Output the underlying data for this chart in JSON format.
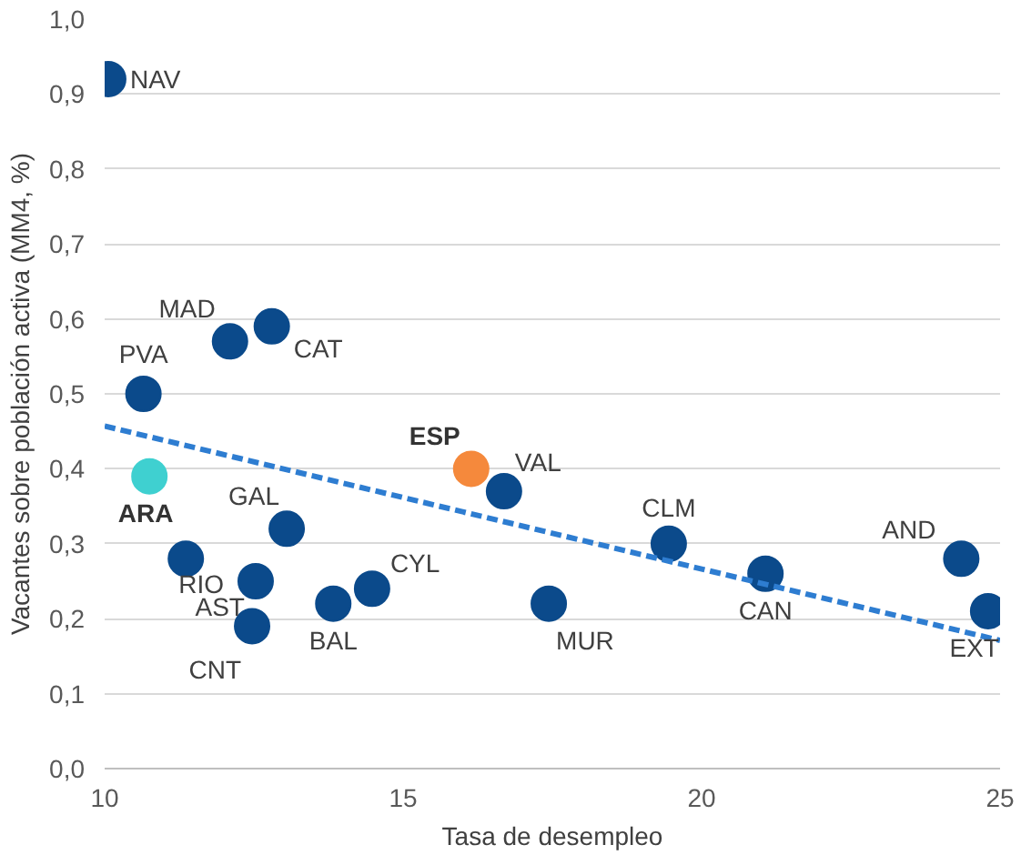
{
  "chart_data": {
    "type": "scatter",
    "xlabel": "Tasa de desempleo",
    "ylabel": "Vacantes sobre población activa (MM4, %)",
    "xlim": [
      10,
      25
    ],
    "xticks": [
      10,
      15,
      20,
      25
    ],
    "ylim": [
      0,
      1.0
    ],
    "yticks": [
      {
        "value": 0,
        "label": "0,0"
      },
      {
        "value": 0.1,
        "label": "0,1"
      },
      {
        "value": 0.2,
        "label": "0,2"
      },
      {
        "value": 0.3,
        "label": "0,3"
      },
      {
        "value": 0.4,
        "label": "0,4"
      },
      {
        "value": 0.5,
        "label": "0,5"
      },
      {
        "value": 0.6,
        "label": "0,6"
      },
      {
        "value": 0.7,
        "label": "0,7"
      },
      {
        "value": 0.8,
        "label": "0,8"
      },
      {
        "value": 0.9,
        "label": "0,9"
      },
      {
        "value": 1.0,
        "label": "1,0"
      }
    ],
    "grid": "y",
    "legend": false,
    "marker": "circle",
    "series": [
      {
        "name": "NAV",
        "color": "#0b4a8b",
        "x": [
          10.06
        ],
        "values": [
          0.92
        ]
      },
      {
        "name": "PVA",
        "color": "#0b4a8b",
        "x": [
          10.65
        ],
        "values": [
          0.5
        ]
      },
      {
        "name": "ARA",
        "color": "#3fd0d0",
        "x": [
          10.75
        ],
        "values": [
          0.39
        ]
      },
      {
        "name": "RIO",
        "color": "#0b4a8b",
        "x": [
          11.36
        ],
        "values": [
          0.28
        ]
      },
      {
        "name": "MAD",
        "color": "#0b4a8b",
        "x": [
          12.1
        ],
        "values": [
          0.57
        ]
      },
      {
        "name": "CAT",
        "color": "#0b4a8b",
        "x": [
          12.8
        ],
        "values": [
          0.59
        ]
      },
      {
        "name": "GAL",
        "color": "#0b4a8b",
        "x": [
          13.05
        ],
        "values": [
          0.32
        ]
      },
      {
        "name": "AST",
        "color": "#0b4a8b",
        "x": [
          12.53
        ],
        "values": [
          0.25
        ]
      },
      {
        "name": "CNT",
        "color": "#0b4a8b",
        "x": [
          12.47
        ],
        "values": [
          0.19
        ]
      },
      {
        "name": "BAL",
        "color": "#0b4a8b",
        "x": [
          13.83
        ],
        "values": [
          0.22
        ]
      },
      {
        "name": "CYL",
        "color": "#0b4a8b",
        "x": [
          14.48
        ],
        "values": [
          0.24
        ]
      },
      {
        "name": "ESP",
        "color": "#f5893c",
        "x": [
          16.14
        ],
        "values": [
          0.4
        ]
      },
      {
        "name": "VAL",
        "color": "#0b4a8b",
        "x": [
          16.69
        ],
        "values": [
          0.37
        ]
      },
      {
        "name": "MUR",
        "color": "#0b4a8b",
        "x": [
          17.44
        ],
        "values": [
          0.22
        ]
      },
      {
        "name": "CLM",
        "color": "#0b4a8b",
        "x": [
          19.45
        ],
        "values": [
          0.3
        ]
      },
      {
        "name": "CAN",
        "color": "#0b4a8b",
        "x": [
          21.07
        ],
        "values": [
          0.26
        ]
      },
      {
        "name": "AND",
        "color": "#0b4a8b",
        "x": [
          24.35
        ],
        "values": [
          0.28
        ]
      },
      {
        "name": "EXT",
        "color": "#0b4a8b",
        "x": [
          24.8
        ],
        "values": [
          0.21
        ]
      },
      {
        "type": "line",
        "color": "#2e7dd1",
        "line_style": "dashed",
        "marker": "none",
        "x": [
          10,
          25
        ],
        "values": [
          0.457,
          0.171
        ]
      }
    ]
  }
}
